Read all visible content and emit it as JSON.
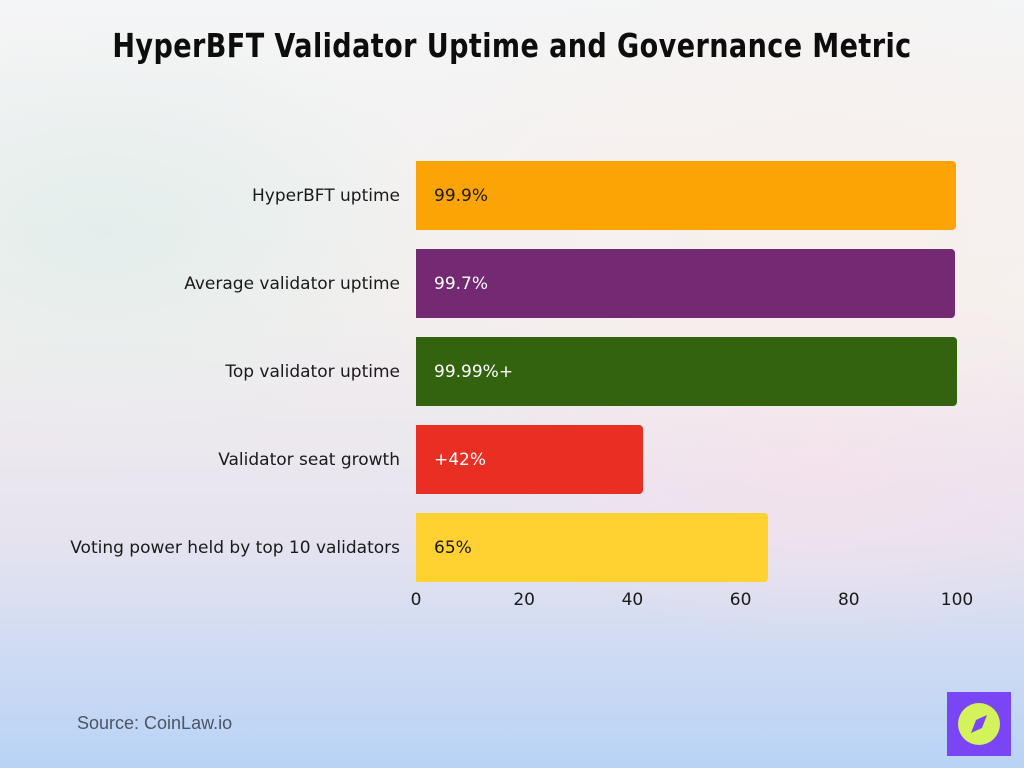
{
  "title": "HyperBFT Validator Uptime and Governance Metric",
  "source": "Source: CoinLaw.io",
  "logo": {
    "icon": "compass-icon",
    "bg_color": "#7a45f5",
    "fg_color": "#d4f35a"
  },
  "chart_data": {
    "type": "bar",
    "orientation": "horizontal",
    "title": "HyperBFT Validator Uptime and Governance Metric",
    "xlabel": "",
    "ylabel": "",
    "xlim": [
      0,
      100
    ],
    "xticks": [
      "0",
      "20",
      "40",
      "60",
      "80",
      "100"
    ],
    "grid": false,
    "legend": null,
    "categories": [
      "HyperBFT uptime",
      "Average validator uptime",
      "Top validator uptime",
      "Validator seat growth",
      "Voting power held by top 10 validators"
    ],
    "values": [
      99.9,
      99.7,
      99.99,
      42,
      65
    ],
    "labels": [
      "99.9%",
      "99.7%",
      "99.99%+",
      "+42%",
      "65%"
    ],
    "colors": [
      "#fba404",
      "#732a72",
      "#346310",
      "#e92f23",
      "#ffd232"
    ],
    "label_colors": [
      "#1a1a1a",
      "#ffffff",
      "#ffffff",
      "#ffffff",
      "#1a1a1a"
    ]
  }
}
